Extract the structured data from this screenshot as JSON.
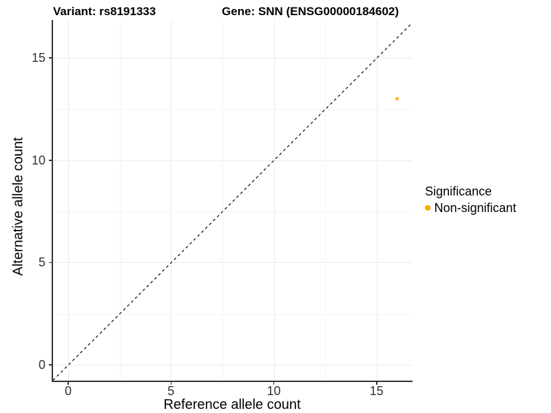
{
  "titles": {
    "left": "Variant: rs8191333",
    "right": "Gene: SNN (ENSG00000184602)"
  },
  "axes": {
    "x": {
      "title": "Reference allele count",
      "tick_labels": [
        "0",
        "5",
        "10",
        "15"
      ],
      "tick_values": [
        0,
        5,
        10,
        15
      ],
      "minor_tick_values": [
        2.5,
        7.5,
        12.5
      ]
    },
    "y": {
      "title": "Alternative allele count",
      "tick_labels": [
        "0",
        "5",
        "10",
        "15"
      ],
      "tick_values": [
        0,
        5,
        10,
        15
      ],
      "minor_tick_values": [
        2.5,
        7.5,
        12.5
      ]
    }
  },
  "legend": {
    "title": "Significance",
    "items": [
      {
        "label": "Non-significant",
        "color": "#FFA500"
      }
    ]
  },
  "colors": {
    "point": "#FFA500",
    "axis_line": "#333333",
    "tick_text": "#333333",
    "grid_major": "#ebebeb",
    "grid_minor": "#f5f5f5",
    "reference_line": "#000000",
    "background": "#ffffff"
  },
  "chart_data": {
    "type": "scatter",
    "title_left": "Variant: rs8191333",
    "title_right": "Gene: SNN (ENSG00000184602)",
    "xlabel": "Reference allele count",
    "ylabel": "Alternative allele count",
    "xlim": [
      -0.75,
      16.7
    ],
    "ylim": [
      -0.75,
      16.85
    ],
    "x_ticks": [
      0,
      5,
      10,
      15
    ],
    "y_ticks": [
      0,
      5,
      10,
      15
    ],
    "grid": "major+minor, light gray on white",
    "legend_position": "right",
    "series": [
      {
        "name": "Non-significant",
        "color": "#FFA500",
        "points": [
          {
            "x": 16,
            "y": 13
          }
        ]
      }
    ],
    "reference_line": {
      "kind": "identity y=x",
      "style": "dashed",
      "color": "#000000"
    }
  }
}
